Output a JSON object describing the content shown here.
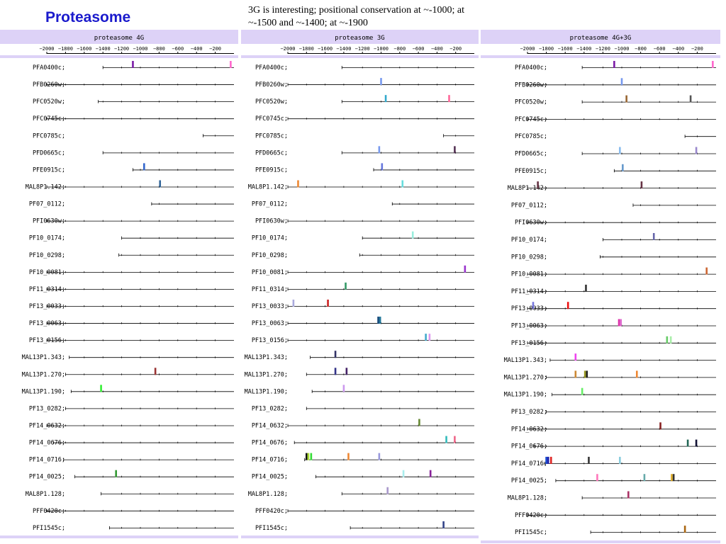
{
  "header": {
    "title": "Proteasome",
    "note": "3G is interesting; positional conservation at ~-1000; at ~-1500 and ~-1400; at ~-1900"
  },
  "axis": {
    "ticks": [
      -2000,
      -1800,
      -1600,
      -1400,
      -1200,
      -1000,
      -800,
      -600,
      -400,
      -200
    ],
    "range": [
      -2000,
      0
    ]
  },
  "colors": {
    "panel_band": "#ddd2f7",
    "panel_title": "#000000",
    "gene_line": "#000000"
  },
  "panels": [
    {
      "title": "proteasome 4G",
      "genes": [
        {
          "label": "PFA0400c;",
          "start": -1400,
          "marks": [
            {
              "pos": -1080,
              "color": "#7a1aa6"
            },
            {
              "pos": -35,
              "color": "#ff66cc"
            }
          ]
        },
        {
          "label": "PFB0260w;",
          "start": -2000,
          "marks": []
        },
        {
          "label": "PFC0520w;",
          "start": -1450,
          "marks": []
        },
        {
          "label": "PFC0745c;",
          "start": -2000,
          "marks": []
        },
        {
          "label": "PFC0785c;",
          "start": -330,
          "marks": []
        },
        {
          "label": "PFD0665c;",
          "start": -1400,
          "marks": []
        },
        {
          "label": "PFE0915c;",
          "start": -1080,
          "marks": [
            {
              "pos": -960,
              "color": "#3366cc"
            }
          ]
        },
        {
          "label": "MAL8P1.142;",
          "start": -2000,
          "marks": [
            {
              "pos": -790,
              "color": "#336699"
            }
          ]
        },
        {
          "label": "PF07_0112;",
          "start": -880,
          "marks": []
        },
        {
          "label": "PFI0630w;",
          "start": -2000,
          "marks": []
        },
        {
          "label": "PF10_0174;",
          "start": -1200,
          "marks": []
        },
        {
          "label": "PF10_0298;",
          "start": -1230,
          "marks": []
        },
        {
          "label": "PF10_0081;",
          "start": -2000,
          "marks": []
        },
        {
          "label": "PF11_0314;",
          "start": -2000,
          "marks": []
        },
        {
          "label": "PF13_0033;",
          "start": -2000,
          "marks": []
        },
        {
          "label": "PF13_0063;",
          "start": -2000,
          "marks": []
        },
        {
          "label": "PF13_0156;",
          "start": -2000,
          "marks": []
        },
        {
          "label": "MAL13P1.343;",
          "start": -1760,
          "marks": []
        },
        {
          "label": "MAL13P1.270;",
          "start": -1800,
          "marks": [
            {
              "pos": -840,
              "color": "#993333"
            }
          ]
        },
        {
          "label": "MAL13P1.190;",
          "start": -1740,
          "marks": [
            {
              "pos": -1420,
              "color": "#33ee33"
            }
          ]
        },
        {
          "label": "PF13_0282;",
          "start": -1800,
          "marks": []
        },
        {
          "label": "PF14_0632;",
          "start": -2000,
          "marks": []
        },
        {
          "label": "PF14_0676;",
          "start": -1930,
          "marks": []
        },
        {
          "label": "PF14_0716;",
          "start": -1820,
          "marks": []
        },
        {
          "label": "PF14_0025;",
          "start": -1700,
          "marks": [
            {
              "pos": -1260,
              "color": "#339933"
            }
          ]
        },
        {
          "label": "MAL8P1.128;",
          "start": -1420,
          "marks": []
        },
        {
          "label": "PFF0420c;",
          "start": -2000,
          "marks": []
        },
        {
          "label": "PFI1545c;",
          "start": -1330,
          "marks": []
        }
      ]
    },
    {
      "title": "proteasome 3G",
      "genes": [
        {
          "label": "PFA0400c;",
          "start": -1420,
          "marks": []
        },
        {
          "label": "PFB0260w;",
          "start": -2000,
          "marks": [
            {
              "pos": -1000,
              "color": "#7799ee"
            }
          ]
        },
        {
          "label": "PFC0520w;",
          "start": -1420,
          "marks": [
            {
              "pos": -950,
              "color": "#33aacc"
            },
            {
              "pos": -270,
              "color": "#ff6699"
            }
          ]
        },
        {
          "label": "PFC0745c;",
          "start": -2000,
          "marks": []
        },
        {
          "label": "PFC0785c;",
          "start": -330,
          "marks": []
        },
        {
          "label": "PFD0665c;",
          "start": -1420,
          "marks": [
            {
              "pos": -1020,
              "color": "#7799ee"
            },
            {
              "pos": -210,
              "color": "#553355"
            }
          ]
        },
        {
          "label": "PFE0915c;",
          "start": -1080,
          "marks": [
            {
              "pos": -990,
              "color": "#6677dd"
            }
          ]
        },
        {
          "label": "MAL8P1.142;",
          "start": -2000,
          "marks": [
            {
              "pos": -1890,
              "color": "#ee8833"
            },
            {
              "pos": -770,
              "color": "#66dddd"
            }
          ]
        },
        {
          "label": "PF07_0112;",
          "start": -880,
          "marks": []
        },
        {
          "label": "PFI0630w;",
          "start": -2000,
          "marks": []
        },
        {
          "label": "PF10_0174;",
          "start": -1200,
          "marks": [
            {
              "pos": -660,
              "color": "#99eedd"
            }
          ]
        },
        {
          "label": "PF10_0298;",
          "start": -1230,
          "marks": []
        },
        {
          "label": "PF10_0081;",
          "start": -2000,
          "marks": [
            {
              "pos": -100,
              "color": "#9933cc"
            }
          ]
        },
        {
          "label": "PF11_0314;",
          "start": -2000,
          "marks": [
            {
              "pos": -1380,
              "color": "#339966"
            }
          ]
        },
        {
          "label": "PF13_0033;",
          "start": -2000,
          "marks": [
            {
              "pos": -1940,
              "color": "#aaaadd"
            },
            {
              "pos": -1570,
              "color": "#cc2222"
            }
          ]
        },
        {
          "label": "PF13_0063;",
          "start": -2000,
          "marks": [
            {
              "pos": -1030,
              "color": "#114477"
            },
            {
              "pos": -1010,
              "color": "#227799"
            }
          ]
        },
        {
          "label": "PF13_0156;",
          "start": -2000,
          "marks": [
            {
              "pos": -520,
              "color": "#44aacc"
            },
            {
              "pos": -480,
              "color": "#dd99ee"
            }
          ]
        },
        {
          "label": "MAL13P1.343;",
          "start": -1760,
          "marks": [
            {
              "pos": -1490,
              "color": "#333366"
            }
          ]
        },
        {
          "label": "MAL13P1.270;",
          "start": -1800,
          "marks": [
            {
              "pos": -1490,
              "color": "#333388"
            },
            {
              "pos": -1370,
              "color": "#442266"
            }
          ]
        },
        {
          "label": "MAL13P1.190;",
          "start": -1740,
          "marks": [
            {
              "pos": -1400,
              "color": "#cc99ee"
            }
          ]
        },
        {
          "label": "PF13_0282;",
          "start": -1800,
          "marks": []
        },
        {
          "label": "PF14_0632;",
          "start": -2000,
          "marks": [
            {
              "pos": -590,
              "color": "#668833"
            }
          ]
        },
        {
          "label": "PF14_0676;",
          "start": -1930,
          "marks": [
            {
              "pos": -300,
              "color": "#33bbbb"
            },
            {
              "pos": -210,
              "color": "#ee6688"
            }
          ]
        },
        {
          "label": "PF14_0716;",
          "start": -1820,
          "marks": [
            {
              "pos": -1800,
              "color": "#111111"
            },
            {
              "pos": -1780,
              "color": "#aadd33"
            },
            {
              "pos": -1750,
              "color": "#33dd33"
            },
            {
              "pos": -1350,
              "color": "#ee8833"
            },
            {
              "pos": -1020,
              "color": "#9999dd"
            }
          ]
        },
        {
          "label": "PF14_0025;",
          "start": -1700,
          "marks": [
            {
              "pos": -760,
              "color": "#aaeeee"
            },
            {
              "pos": -470,
              "color": "#882299"
            }
          ]
        },
        {
          "label": "MAL8P1.128;",
          "start": -1420,
          "marks": [
            {
              "pos": -930,
              "color": "#aa99cc"
            }
          ]
        },
        {
          "label": "PFF0420c;",
          "start": -2000,
          "marks": []
        },
        {
          "label": "PFI1545c;",
          "start": -1330,
          "marks": [
            {
              "pos": -330,
              "color": "#334488"
            }
          ]
        }
      ]
    },
    {
      "title": "proteasome 4G+3G",
      "genes": [
        {
          "label": "PFA0400c;",
          "start": -1420,
          "marks": [
            {
              "pos": -1080,
              "color": "#7a1aa6"
            },
            {
              "pos": -35,
              "color": "#ff66cc"
            }
          ]
        },
        {
          "label": "PFB0260w;",
          "start": -2000,
          "marks": [
            {
              "pos": -1000,
              "color": "#7799ee"
            }
          ]
        },
        {
          "label": "PFC0520w;",
          "start": -1420,
          "marks": [
            {
              "pos": -950,
              "color": "#996633"
            },
            {
              "pos": -270,
              "color": "#555555"
            }
          ]
        },
        {
          "label": "PFC0745c;",
          "start": -2000,
          "marks": []
        },
        {
          "label": "PFC0785c;",
          "start": -330,
          "marks": []
        },
        {
          "label": "PFD0665c;",
          "start": -1420,
          "marks": [
            {
              "pos": -1020,
              "color": "#88bbee"
            },
            {
              "pos": -210,
              "color": "#9988cc"
            }
          ]
        },
        {
          "label": "PFE0915c;",
          "start": -1080,
          "marks": [
            {
              "pos": -990,
              "color": "#6699cc"
            }
          ]
        },
        {
          "label": "MAL8P1.142;",
          "start": -2000,
          "marks": [
            {
              "pos": -1890,
              "color": "#663344"
            },
            {
              "pos": -790,
              "color": "#663344"
            }
          ]
        },
        {
          "label": "PF07_0112;",
          "start": -880,
          "marks": []
        },
        {
          "label": "PFI0630w;",
          "start": -2000,
          "marks": []
        },
        {
          "label": "PF10_0174;",
          "start": -1200,
          "marks": [
            {
              "pos": -660,
              "color": "#6666aa"
            }
          ]
        },
        {
          "label": "PF10_0298;",
          "start": -1230,
          "marks": []
        },
        {
          "label": "PF10_0081;",
          "start": -2000,
          "marks": [
            {
              "pos": -100,
              "color": "#cc6633"
            }
          ]
        },
        {
          "label": "PF11_0314;",
          "start": -2000,
          "marks": [
            {
              "pos": -1380,
              "color": "#333333"
            }
          ]
        },
        {
          "label": "PF13_0033;",
          "start": -2000,
          "marks": [
            {
              "pos": -1940,
              "color": "#7777dd"
            },
            {
              "pos": -1570,
              "color": "#ee1111"
            }
          ]
        },
        {
          "label": "PF13_0063;",
          "start": -2000,
          "marks": [
            {
              "pos": -1030,
              "color": "#dd33aa"
            },
            {
              "pos": -1010,
              "color": "#dd66cc"
            }
          ]
        },
        {
          "label": "PF13_0156;",
          "start": -2000,
          "marks": [
            {
              "pos": -520,
              "color": "#66cc66"
            },
            {
              "pos": -480,
              "color": "#aaeeaa"
            }
          ]
        },
        {
          "label": "MAL13P1.343;",
          "start": -1760,
          "marks": [
            {
              "pos": -1490,
              "color": "#ee44ee"
            }
          ]
        },
        {
          "label": "MAL13P1.270;",
          "start": -1800,
          "marks": [
            {
              "pos": -1490,
              "color": "#cc8833"
            },
            {
              "pos": -1390,
              "color": "#999922"
            },
            {
              "pos": -1370,
              "color": "#222222"
            },
            {
              "pos": -840,
              "color": "#ee8833"
            }
          ]
        },
        {
          "label": "MAL13P1.190;",
          "start": -1740,
          "marks": [
            {
              "pos": -1420,
              "color": "#66ee66"
            }
          ]
        },
        {
          "label": "PF13_0282;",
          "start": -1800,
          "marks": []
        },
        {
          "label": "PF14_0632;",
          "start": -2000,
          "marks": [
            {
              "pos": -590,
              "color": "#882222"
            }
          ]
        },
        {
          "label": "PF14_0676;",
          "start": -1930,
          "marks": [
            {
              "pos": -300,
              "color": "#226655"
            },
            {
              "pos": -210,
              "color": "#111133"
            }
          ]
        },
        {
          "label": "PF14_0716;",
          "start": -1820,
          "marks": [
            {
              "pos": -1800,
              "color": "#1144cc"
            },
            {
              "pos": -1780,
              "color": "#2222aa"
            },
            {
              "pos": -1750,
              "color": "#dd2222"
            },
            {
              "pos": -1350,
              "color": "#333333"
            },
            {
              "pos": -1020,
              "color": "#88ccdd"
            }
          ]
        },
        {
          "label": "PF14_0025;",
          "start": -1700,
          "marks": [
            {
              "pos": -1260,
              "color": "#ff77bb"
            },
            {
              "pos": -760,
              "color": "#66aaaa"
            },
            {
              "pos": -470,
              "color": "#ddaa22"
            },
            {
              "pos": -450,
              "color": "#333333"
            }
          ]
        },
        {
          "label": "MAL8P1.128;",
          "start": -1420,
          "marks": [
            {
              "pos": -930,
              "color": "#aa3366"
            }
          ]
        },
        {
          "label": "PFF0420c;",
          "start": -2000,
          "marks": []
        },
        {
          "label": "PFI1545c;",
          "start": -1330,
          "marks": [
            {
              "pos": -330,
              "color": "#aa6611"
            }
          ]
        }
      ]
    }
  ]
}
